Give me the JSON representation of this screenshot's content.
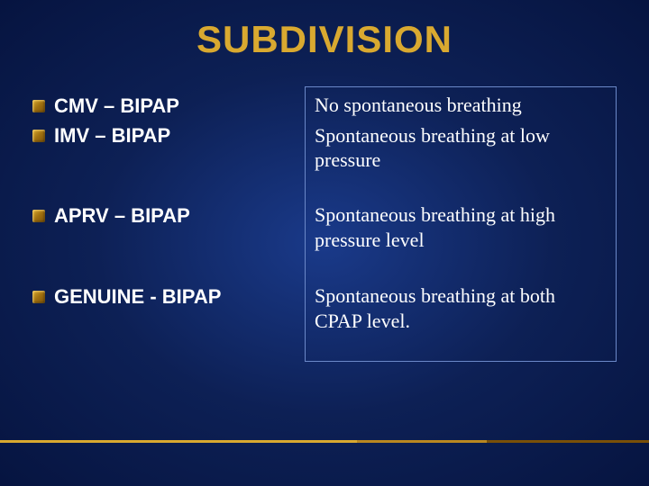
{
  "slide": {
    "title": "SUBDIVISION",
    "background_gradient": [
      "#1a3a8a",
      "#0d2055",
      "#061440"
    ],
    "title_color": "#d9a930",
    "text_color": "#ffffff",
    "border_color": "#6b88c8",
    "bullet_color": "#d9a930",
    "footer_colors": [
      "#d9a930",
      "#ba8820",
      "#7a5008"
    ],
    "title_fontsize": 42,
    "bullet_fontsize": 22,
    "desc_fontsize": 22,
    "left_items": [
      {
        "label": "CMV – BIPAP"
      },
      {
        "label": "IMV – BIPAP"
      },
      {
        "label": "APRV – BIPAP"
      },
      {
        "label": "GENUINE - BIPAP"
      }
    ],
    "right_items": [
      {
        "text": "No spontaneous breathing"
      },
      {
        "text": "Spontaneous breathing at low pressure"
      },
      {
        "text": "Spontaneous breathing at high pressure level"
      },
      {
        "text": "Spontaneous breathing at both CPAP level."
      }
    ]
  }
}
